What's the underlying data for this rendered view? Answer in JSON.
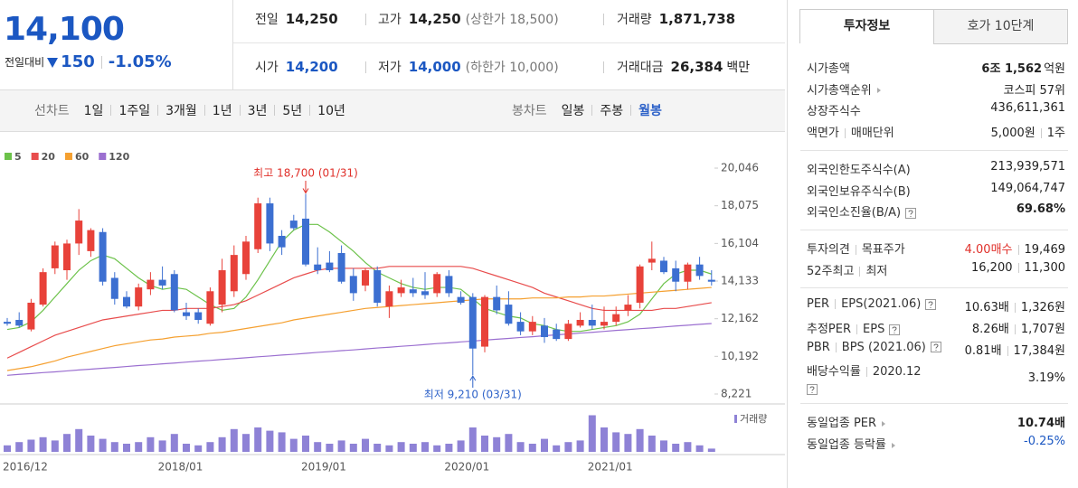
{
  "header": {
    "quote": {
      "price": "14,100",
      "change_label": "전일대비",
      "change": "150",
      "change_rate": "-1.05%",
      "color": "#1b57c2"
    },
    "stats": [
      [
        {
          "label": "전일",
          "value": "14,250"
        },
        {
          "label": "고가",
          "value": "14,250",
          "note": "(상한가 18,500)"
        },
        {
          "label": "거래량",
          "value": "1,871,738"
        }
      ],
      [
        {
          "label": "시가",
          "value": "14,200",
          "color": "#1b57c2"
        },
        {
          "label": "저가",
          "value": "14,000",
          "note": "(하한가 10,000)",
          "color": "#1b57c2"
        },
        {
          "label": "거래대금",
          "value": "26,384",
          "unit": "백만"
        }
      ]
    ]
  },
  "toolbar": {
    "line_chart": {
      "label": "선차트",
      "periods": [
        "1일",
        "1주일",
        "3개월",
        "1년",
        "3년",
        "5년",
        "10년"
      ]
    },
    "candle_chart": {
      "label": "봉차트",
      "periods": [
        "일봉",
        "주봉",
        "월봉"
      ],
      "selected": 2
    }
  },
  "chart_data": {
    "type": "candlestick",
    "categories": [
      "2016/12",
      null,
      null,
      null,
      null,
      null,
      null,
      null,
      null,
      null,
      null,
      null,
      null,
      "2018/01",
      null,
      null,
      null,
      null,
      null,
      null,
      null,
      null,
      null,
      null,
      null,
      "2019/01",
      null,
      null,
      null,
      null,
      null,
      null,
      null,
      null,
      null,
      null,
      null,
      "2020/01",
      null,
      null,
      null,
      null,
      null,
      null,
      null,
      null,
      null,
      null,
      null,
      "2021/01",
      null,
      null,
      null,
      null,
      null,
      null,
      null,
      null,
      null,
      null
    ],
    "open": [
      12000,
      12100,
      11600,
      12900,
      14800,
      14700,
      16100,
      15700,
      16700,
      14300,
      13300,
      12800,
      13700,
      14200,
      14500,
      12500,
      12500,
      11900,
      12900,
      13600,
      14500,
      15800,
      18200,
      16500,
      17300,
      17400,
      15000,
      15100,
      15600,
      14400,
      13900,
      14700,
      12800,
      13500,
      13700,
      13600,
      13500,
      14400,
      13300,
      13300,
      10700,
      13300,
      12900,
      12000,
      11500,
      11800,
      11600,
      11100,
      11800,
      12100,
      11800,
      12000,
      12600,
      13000,
      15100,
      15200,
      14800,
      14100,
      15000,
      14200
    ],
    "high": [
      12200,
      12500,
      13200,
      14800,
      16200,
      16300,
      17900,
      16900,
      16900,
      14600,
      13600,
      14000,
      14600,
      14900,
      14700,
      13000,
      12700,
      13800,
      15300,
      16000,
      16500,
      18500,
      18500,
      16800,
      17600,
      18700,
      15900,
      15700,
      16000,
      14800,
      14800,
      14900,
      13900,
      14200,
      14300,
      14600,
      14600,
      14700,
      13600,
      13500,
      13400,
      13900,
      13600,
      12500,
      12300,
      12200,
      11900,
      12100,
      12500,
      12900,
      12800,
      12800,
      13400,
      15000,
      16200,
      15400,
      15200,
      15100,
      15400,
      14700
    ],
    "low": [
      11800,
      11700,
      11500,
      12800,
      14500,
      14200,
      15500,
      15400,
      13900,
      12900,
      12700,
      12600,
      13400,
      13700,
      12500,
      12100,
      11900,
      11800,
      12500,
      13300,
      14200,
      15600,
      15700,
      15500,
      16800,
      14900,
      14500,
      14600,
      14000,
      13100,
      13600,
      12800,
      12200,
      13300,
      13300,
      13200,
      13300,
      13300,
      12900,
      9210,
      10400,
      12400,
      11800,
      11300,
      11300,
      10900,
      11000,
      11000,
      11700,
      11600,
      11600,
      11800,
      12300,
      12700,
      14700,
      14500,
      13600,
      13700,
      14200,
      13900
    ],
    "close": [
      11900,
      11800,
      13000,
      14600,
      16000,
      16100,
      17300,
      16800,
      14100,
      13200,
      12800,
      13800,
      14200,
      13900,
      12600,
      12300,
      12100,
      13600,
      14700,
      15500,
      16200,
      18200,
      16100,
      15900,
      16900,
      15000,
      14700,
      14700,
      14100,
      13500,
      14700,
      13000,
      13600,
      13800,
      13500,
      13400,
      14500,
      13500,
      13000,
      10600,
      13300,
      12600,
      11900,
      11500,
      12000,
      11200,
      11100,
      11900,
      12100,
      11800,
      12000,
      12400,
      12900,
      14900,
      15300,
      14600,
      14100,
      15000,
      14400,
      14100
    ],
    "up_color": "#e8423a",
    "down_color": "#3c6fd1",
    "series": [
      {
        "name": "5",
        "color": "#6cc24a",
        "values": [
          11600,
          11700,
          12000,
          12600,
          13300,
          14000,
          14700,
          15200,
          15500,
          15300,
          14800,
          14300,
          13900,
          13700,
          13800,
          13700,
          13300,
          12900,
          12600,
          12700,
          13300,
          14200,
          15200,
          16200,
          16800,
          17100,
          17100,
          16700,
          16200,
          15700,
          15100,
          14600,
          14300,
          14000,
          13800,
          13700,
          13800,
          13800,
          13700,
          13200,
          12700,
          12500,
          12300,
          12200,
          11900,
          11800,
          11600,
          11500,
          11500,
          11600,
          11700,
          11800,
          12000,
          12400,
          13200,
          14000,
          14500,
          14700,
          14700,
          14500
        ]
      },
      {
        "name": "20",
        "color": "#e84c4c",
        "values": [
          10100,
          10400,
          10700,
          11000,
          11300,
          11500,
          11700,
          11900,
          12100,
          12200,
          12300,
          12400,
          12500,
          12600,
          12600,
          12700,
          12700,
          12700,
          12800,
          12900,
          13100,
          13400,
          13700,
          14000,
          14300,
          14500,
          14700,
          14800,
          14800,
          14800,
          14800,
          14800,
          14900,
          14900,
          14900,
          14900,
          14900,
          14900,
          14900,
          14800,
          14600,
          14400,
          14200,
          14000,
          13800,
          13500,
          13300,
          13100,
          12900,
          12700,
          12600,
          12600,
          12600,
          12600,
          12600,
          12700,
          12700,
          12800,
          12900,
          13000
        ]
      },
      {
        "name": "60",
        "color": "#f5a030",
        "values": [
          9450,
          9550,
          9650,
          9800,
          9950,
          10150,
          10300,
          10450,
          10600,
          10750,
          10850,
          10950,
          11050,
          11100,
          11200,
          11250,
          11300,
          11400,
          11450,
          11550,
          11650,
          11750,
          11850,
          11950,
          12100,
          12200,
          12300,
          12400,
          12500,
          12600,
          12700,
          12750,
          12800,
          12850,
          12900,
          12950,
          13000,
          13050,
          13100,
          13150,
          13200,
          13200,
          13200,
          13200,
          13250,
          13250,
          13250,
          13300,
          13300,
          13350,
          13350,
          13400,
          13450,
          13500,
          13550,
          13600,
          13650,
          13700,
          13750,
          13800
        ]
      },
      {
        "name": "120",
        "color": "#9b6fd0",
        "values": [
          9200,
          9250,
          9290,
          9340,
          9380,
          9430,
          9480,
          9520,
          9570,
          9610,
          9660,
          9710,
          9750,
          9800,
          9840,
          9890,
          9940,
          9980,
          10030,
          10070,
          10120,
          10170,
          10210,
          10260,
          10300,
          10350,
          10400,
          10440,
          10490,
          10530,
          10580,
          10630,
          10670,
          10720,
          10760,
          10810,
          10860,
          10900,
          10950,
          10990,
          11040,
          11090,
          11130,
          11180,
          11220,
          11270,
          11320,
          11360,
          11410,
          11450,
          11500,
          11550,
          11590,
          11640,
          11680,
          11730,
          11780,
          11820,
          11870,
          11910
        ]
      }
    ],
    "ylim": [
      7700,
      21750
    ],
    "yticks": [
      {
        "value": 20046,
        "label": "20,046"
      },
      {
        "value": 18075,
        "label": "18,075"
      },
      {
        "value": 16104,
        "label": "16,104"
      },
      {
        "value": 14133,
        "label": "14,133"
      },
      {
        "value": 12162,
        "label": "12,162"
      },
      {
        "value": 10192,
        "label": "10,192"
      },
      {
        "value": 8221,
        "label": "8,221"
      }
    ],
    "grid": false,
    "high_annotation": "최고 18,700 (01/31)",
    "high_color": "#e0302a",
    "low_annotation": "최저 9,210 (03/31)",
    "low_color": "#2f63c9",
    "volume": {
      "name": "거래량",
      "color": "#8e82d6",
      "ylim": [
        0,
        50
      ],
      "values": [
        8,
        12,
        15,
        18,
        14,
        22,
        28,
        20,
        16,
        12,
        10,
        12,
        18,
        14,
        22,
        10,
        8,
        12,
        18,
        28,
        22,
        30,
        26,
        24,
        16,
        20,
        12,
        10,
        14,
        10,
        16,
        10,
        8,
        12,
        10,
        12,
        8,
        10,
        14,
        30,
        20,
        18,
        22,
        12,
        10,
        16,
        8,
        12,
        14,
        45,
        30,
        24,
        22,
        28,
        20,
        14,
        10,
        12,
        8,
        4
      ]
    }
  },
  "side_panel": {
    "tabs": [
      "투자정보",
      "호가 10단계"
    ],
    "active_tab": 0,
    "sections": [
      [
        {
          "labels": [
            "시가총액"
          ],
          "values": [
            "6조 1,562"
          ],
          "unit": "억원",
          "bold": true
        },
        {
          "labels": [
            "시가총액순위"
          ],
          "arrow": true,
          "values": [
            "코스피 57위"
          ]
        },
        {
          "labels": [
            "상장주식수"
          ],
          "values": [
            "436,611,361"
          ]
        },
        {
          "labels": [
            "액면가",
            "매매단위"
          ],
          "values": [
            "5,000원",
            "1주"
          ]
        }
      ],
      [
        {
          "labels": [
            "외국인한도주식수(A)"
          ],
          "values": [
            "213,939,571"
          ]
        },
        {
          "labels": [
            "외국인보유주식수(B)"
          ],
          "values": [
            "149,064,747"
          ]
        },
        {
          "labels": [
            "외국인소진율(B/A)"
          ],
          "help": "inline",
          "values": [
            "69.68%"
          ],
          "bold": true
        }
      ],
      [
        {
          "labels": [
            "투자의견",
            "목표주가"
          ],
          "values": [
            "4.00매수",
            "19,469"
          ],
          "first_value_color": "#e0302a"
        },
        {
          "labels": [
            "52주최고",
            "최저"
          ],
          "values": [
            "16,200",
            "11,300"
          ]
        }
      ],
      [
        {
          "labels": [
            "PER",
            "EPS(2021.06)"
          ],
          "help": "inline",
          "values": [
            "10.63배",
            "1,326원"
          ]
        },
        {
          "labels": [
            "추정PER",
            "EPS"
          ],
          "help": "inline",
          "values": [
            "8.26배",
            "1,707원"
          ]
        },
        {
          "labels": [
            "PBR",
            "BPS (2021.06)"
          ],
          "help": "inline",
          "values": [
            "0.81배",
            "17,384원"
          ]
        },
        {
          "labels": [
            "배당수익률",
            "2020.12"
          ],
          "help": "below",
          "values": [
            "3.19%"
          ]
        }
      ],
      [
        {
          "labels": [
            "동일업종 PER"
          ],
          "arrow": true,
          "values": [
            "10.74배"
          ],
          "bold": true
        },
        {
          "labels": [
            "동일업종 등락률"
          ],
          "arrow": true,
          "values": [
            "-0.25%"
          ],
          "first_value_color": "#1b57c2"
        }
      ]
    ]
  }
}
